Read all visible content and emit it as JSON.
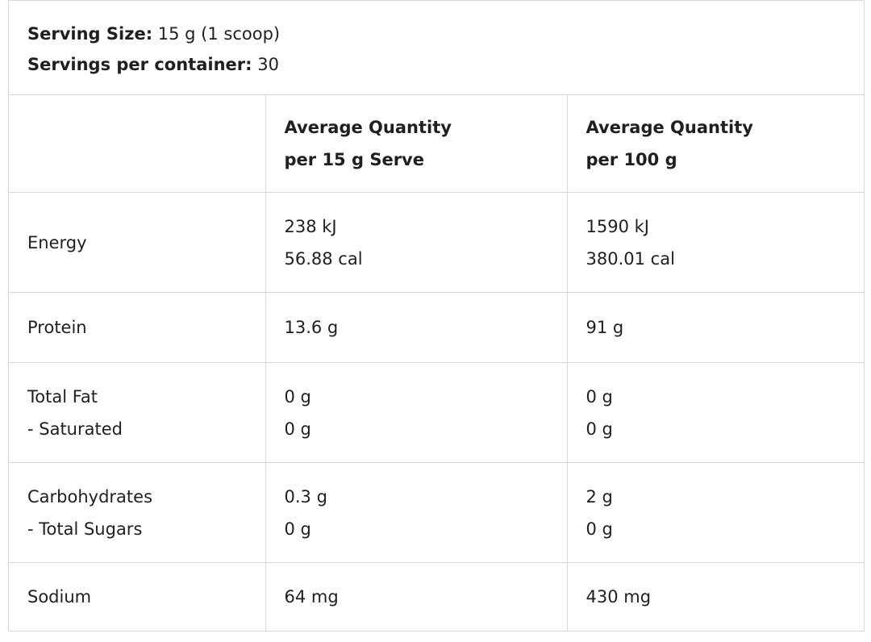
{
  "serving": {
    "size_label": "Serving Size:",
    "size_value": "15 g (1 scoop)",
    "per_container_label": "Servings per container:",
    "per_container_value": "30"
  },
  "table": {
    "columns": [
      [
        "Average Quantity",
        "per 15 g Serve"
      ],
      [
        "Average Quantity",
        "per 100 g"
      ]
    ],
    "rows": [
      {
        "label": [
          "Energy"
        ],
        "per_serve": [
          "238 kJ",
          "56.88 cal"
        ],
        "per_100g": [
          "1590 kJ",
          "380.01 cal"
        ]
      },
      {
        "label": [
          "Protein"
        ],
        "per_serve": [
          "13.6 g"
        ],
        "per_100g": [
          "91 g"
        ]
      },
      {
        "label": [
          "Total Fat",
          "- Saturated"
        ],
        "per_serve": [
          "0 g",
          "0 g"
        ],
        "per_100g": [
          "0 g",
          "0 g"
        ]
      },
      {
        "label": [
          "Carbohydrates",
          "- Total Sugars"
        ],
        "per_serve": [
          "0.3 g",
          "0 g"
        ],
        "per_100g": [
          "2 g",
          "0 g"
        ]
      },
      {
        "label": [
          "Sodium"
        ],
        "per_serve": [
          "64 mg"
        ],
        "per_100g": [
          "430 mg"
        ]
      }
    ]
  }
}
